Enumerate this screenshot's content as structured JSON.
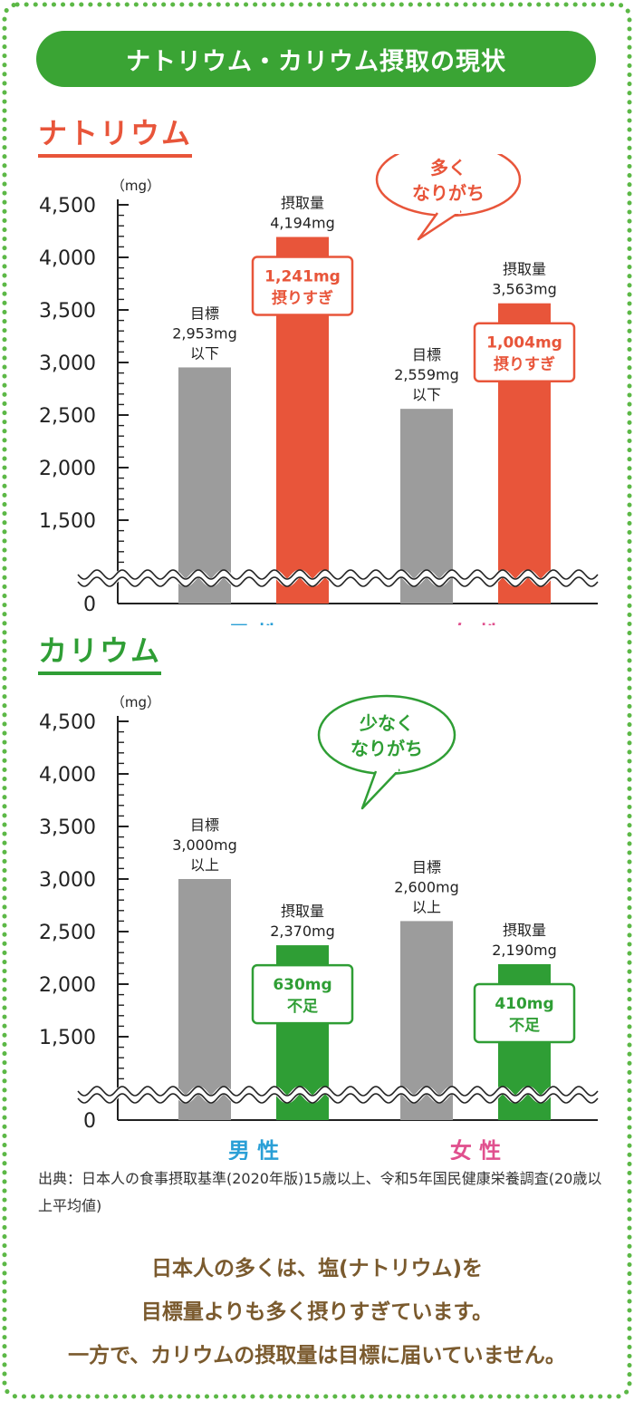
{
  "header": {
    "title": "ナトリウム・カリウム摂取の現状"
  },
  "charts": {
    "sodium": {
      "title": "ナトリウム",
      "bubble_lines": [
        "多く",
        "なりがち"
      ]
    },
    "potassium": {
      "title": "カリウム",
      "bubble_lines": [
        "少なく",
        "なりがち"
      ]
    }
  },
  "colors": {
    "gray": "#9c9c9c",
    "sodium": "#e8553a",
    "potassium": "#2f9e35",
    "header": "#3aa434",
    "male": "#2a9fd6",
    "female": "#e0508e",
    "footer": "#7a5a2e"
  },
  "chart_data": [
    {
      "type": "bar",
      "title": "ナトリウム",
      "unit": "（mg）",
      "yticks": [
        "4,500",
        "4,000",
        "3,500",
        "3,000",
        "2,500",
        "2,000",
        "1,500"
      ],
      "ytick_values": [
        4500,
        4000,
        3500,
        3000,
        2500,
        2000,
        1500
      ],
      "ymin_label": "0",
      "ylim": [
        1000,
        4500
      ],
      "axis_break": true,
      "categories": [
        "男性",
        "女性"
      ],
      "series": [
        {
          "name": "目標",
          "values": [
            2953,
            2559
          ],
          "labels": [
            [
              "目標",
              "2,953mg",
              "以下"
            ],
            [
              "目標",
              "2,559mg",
              "以下"
            ]
          ]
        },
        {
          "name": "摂取量",
          "values": [
            4194,
            3563
          ],
          "labels": [
            [
              "摂取量",
              "4,194mg"
            ],
            [
              "摂取量",
              "3,563mg"
            ]
          ],
          "diff_labels": [
            [
              "1,241mg",
              "摂りすぎ"
            ],
            [
              "1,004mg",
              "摂りすぎ"
            ]
          ]
        }
      ]
    },
    {
      "type": "bar",
      "title": "カリウム",
      "unit": "（mg）",
      "yticks": [
        "4,500",
        "4,000",
        "3,500",
        "3,000",
        "2,500",
        "2,000",
        "1,500"
      ],
      "ytick_values": [
        4500,
        4000,
        3500,
        3000,
        2500,
        2000,
        1500
      ],
      "ymin_label": "0",
      "ylim": [
        1000,
        4500
      ],
      "axis_break": true,
      "categories": [
        "男性",
        "女性"
      ],
      "series": [
        {
          "name": "目標",
          "values": [
            3000,
            2600
          ],
          "labels": [
            [
              "目標",
              "3,000mg",
              "以上"
            ],
            [
              "目標",
              "2,600mg",
              "以上"
            ]
          ]
        },
        {
          "name": "摂取量",
          "values": [
            2370,
            2190
          ],
          "labels": [
            [
              "摂取量",
              "2,370mg"
            ],
            [
              "摂取量",
              "2,190mg"
            ]
          ],
          "diff_labels": [
            [
              "630mg",
              "不足"
            ],
            [
              "410mg",
              "不足"
            ]
          ]
        }
      ]
    }
  ],
  "source": "出典：日本人の食事摂取基準(2020年版)15歳以上、令和5年国民健康栄養調査(20歳以上平均値)",
  "footer": {
    "line1": "日本人の多くは、塩(ナトリウム)を",
    "line2": "目標量よりも多く摂りすぎています。",
    "line3": "一方で、カリウムの摂取量は目標に届いていません。"
  }
}
